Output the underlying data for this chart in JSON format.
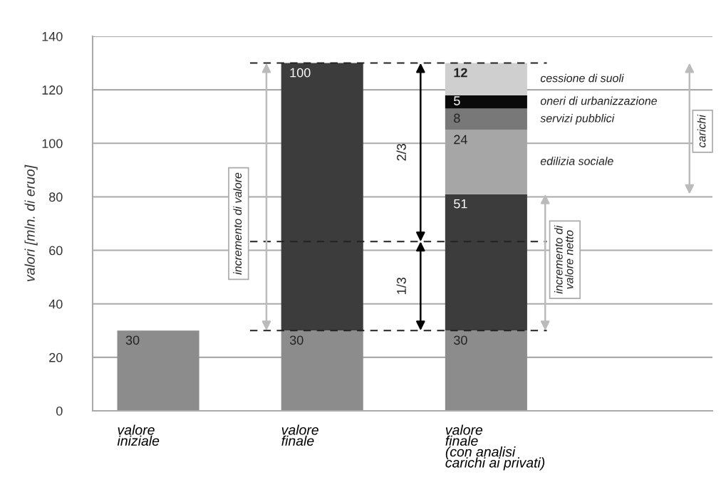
{
  "chart_data": {
    "type": "bar",
    "stacked": true,
    "ylabel": "valori [mln. di eruo]",
    "categories": [
      "valore\niniziale",
      "valore\nfinale",
      "valore\nfinale\n(con analisi\ncarichi ai privati)"
    ],
    "series": [
      {
        "color": "#8c8c8c",
        "values": [
          30,
          30,
          30
        ]
      },
      {
        "color": "#3c3c3c",
        "values": [
          null,
          100,
          51
        ]
      },
      {
        "name": "edilizia sociale",
        "color": "#a6a6a6",
        "values": [
          null,
          null,
          24
        ]
      },
      {
        "name": "servizi pubblici",
        "color": "#787878",
        "values": [
          null,
          null,
          8
        ]
      },
      {
        "name": "oneri di urbanizzazione",
        "color": "#0a0a0a",
        "values": [
          null,
          null,
          5
        ]
      },
      {
        "name": "cessione di suoli",
        "color": "#cfcfcf",
        "values": [
          null,
          null,
          12
        ]
      }
    ],
    "data_labels": true,
    "ylim": [
      0,
      140
    ],
    "yticks": [
      0,
      20,
      40,
      60,
      80,
      100,
      120,
      140
    ],
    "grid": "y",
    "ref_lines": [
      {
        "axis": "y",
        "value": 30,
        "line_style": "dashed",
        "color": "#222222"
      },
      {
        "axis": "y",
        "value": 63.3,
        "line_style": "dashed",
        "color": "#222222"
      },
      {
        "axis": "y",
        "value": 130,
        "line_style": "dashed",
        "color": "#222222"
      }
    ],
    "annotations": [
      "incremento di valore",
      "2/3",
      "1/3",
      "carichi",
      "incremento di\nvalore netto"
    ]
  }
}
